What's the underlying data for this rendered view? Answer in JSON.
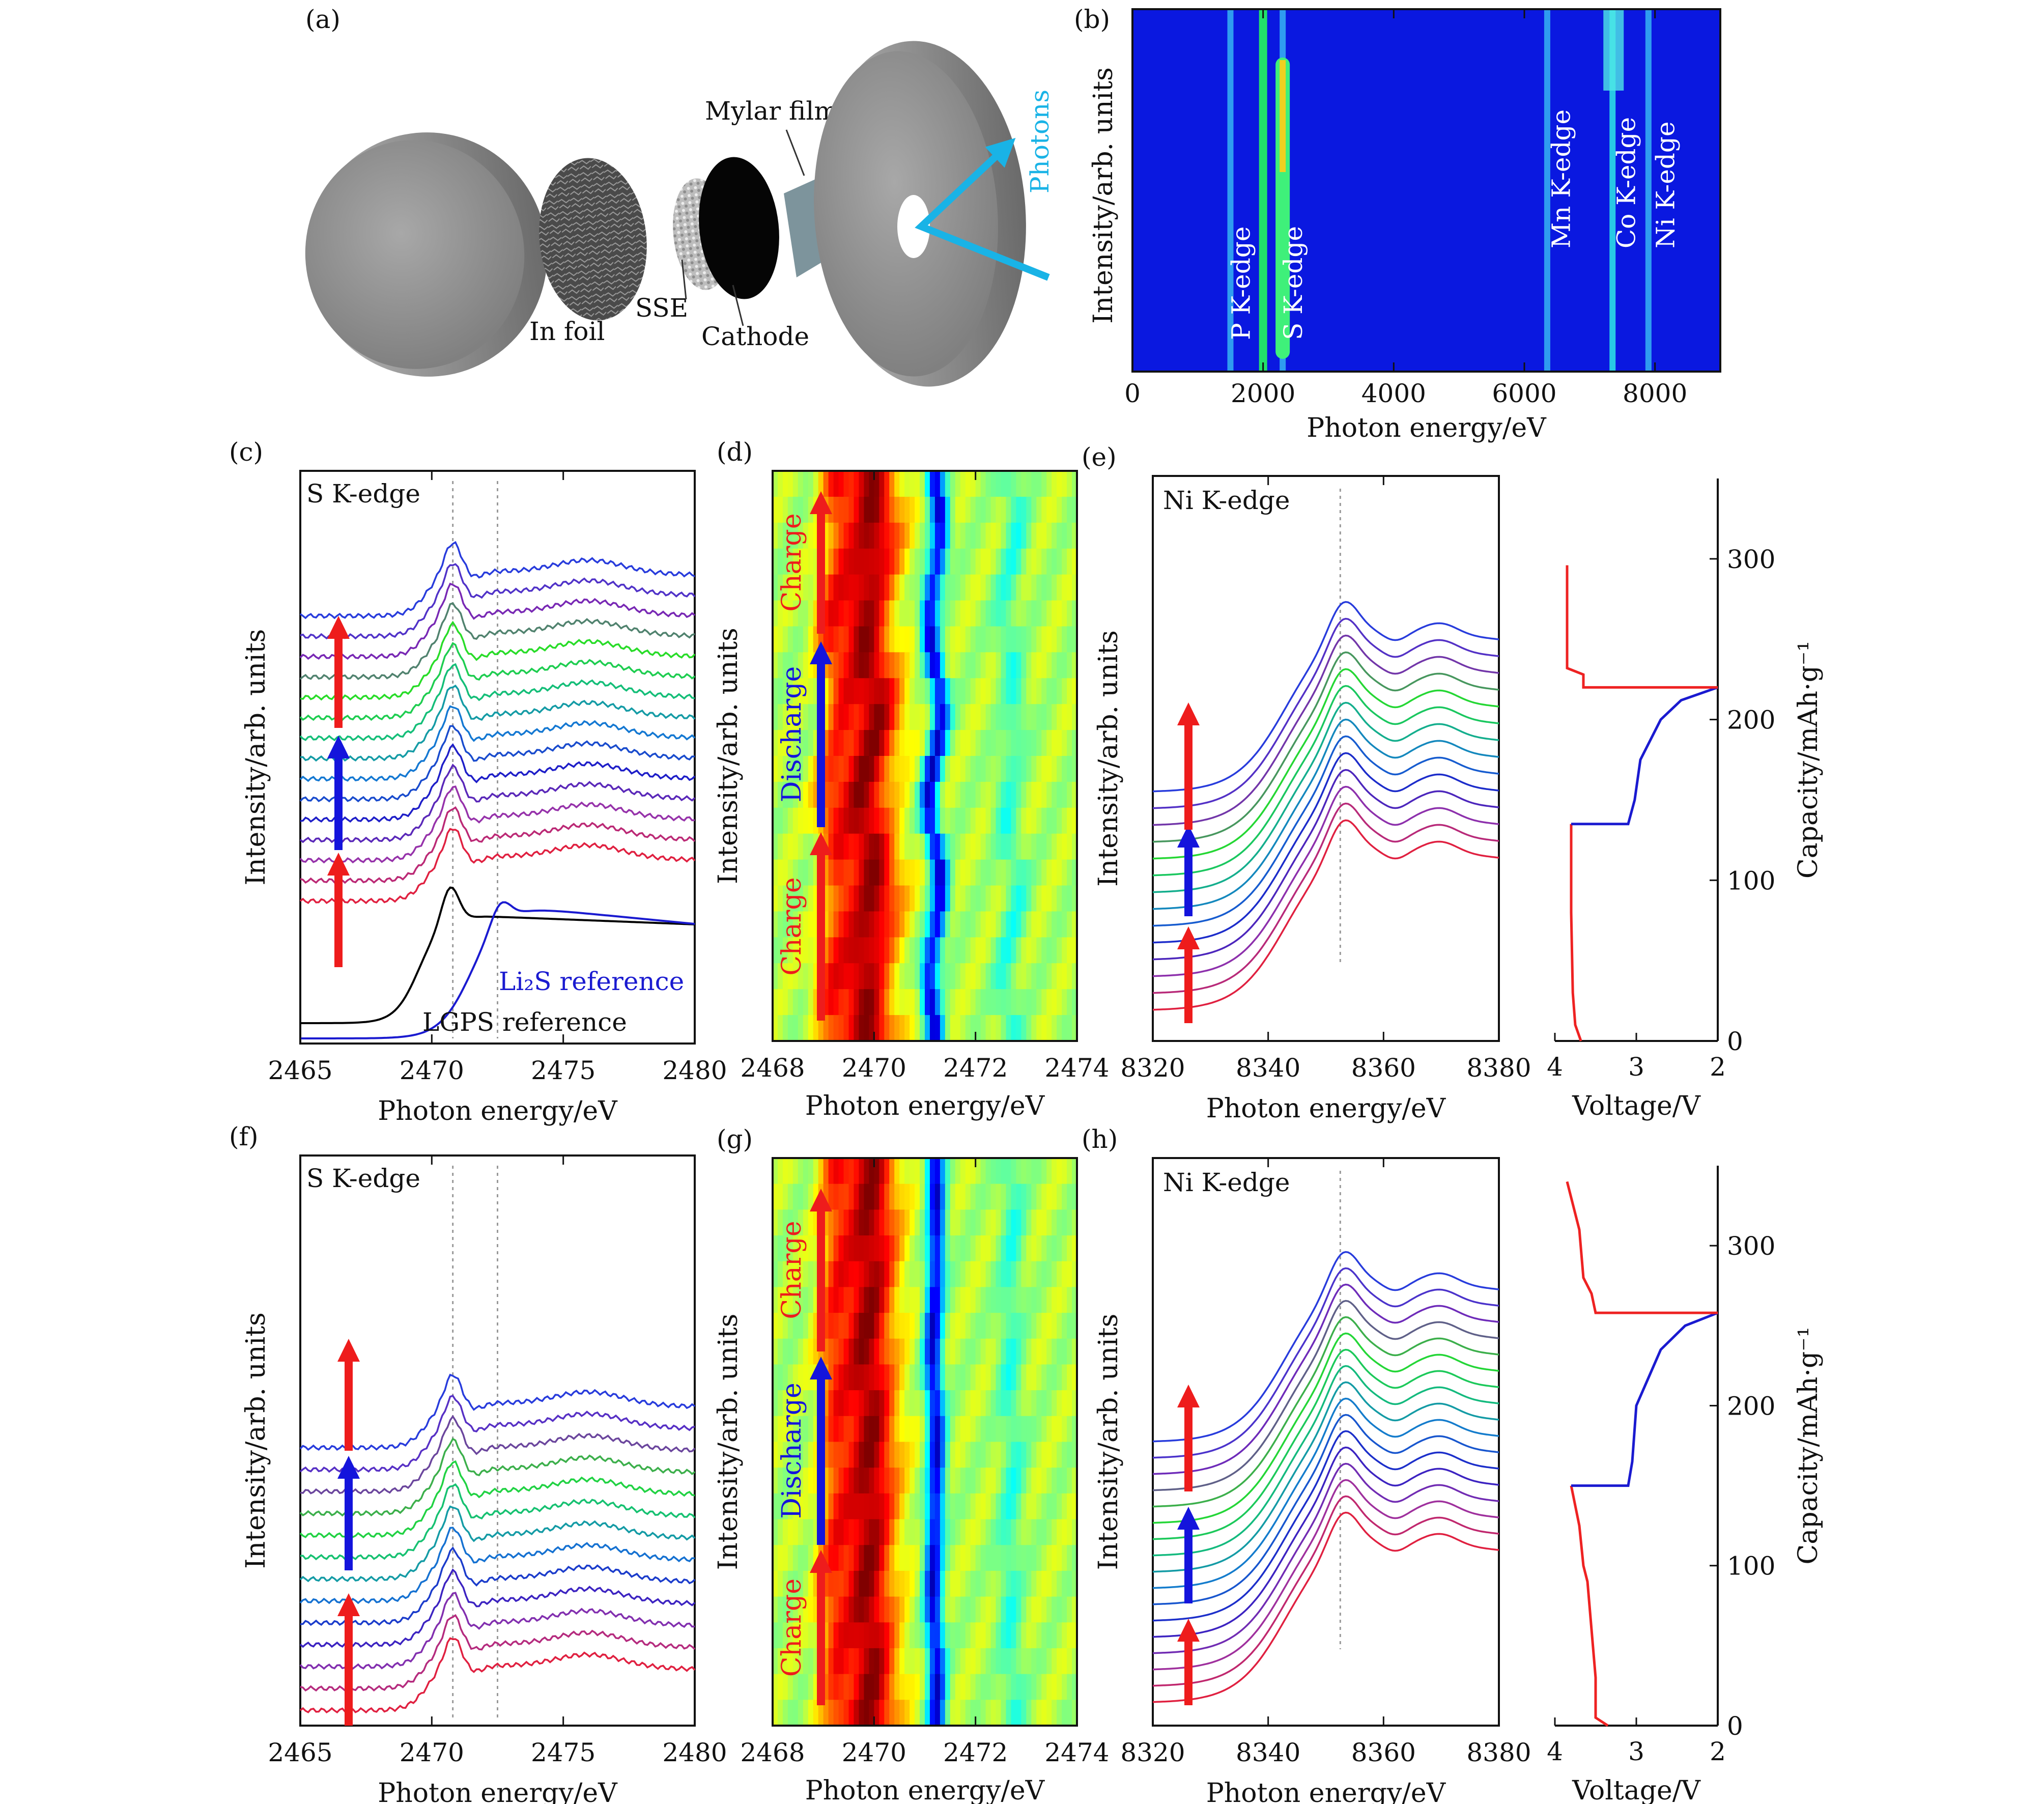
{
  "panel_labels": [
    "(a)",
    "(b)",
    "(c)",
    "(d)",
    "(e)",
    "(f)",
    "(g)",
    "(h)"
  ],
  "schematic": {
    "labels": [
      "In foil",
      "SSE",
      "Cathode",
      "Mylar film",
      "Photons"
    ],
    "colors": {
      "disk": "#9a9a9a",
      "cathode": "#050505",
      "mylar": "#7d949c",
      "photons": "#19b3e6"
    }
  },
  "chart_data": [
    {
      "panel": "(b)",
      "type": "heatmap",
      "xlabel": "Photon energy/eV",
      "ylabel": "Intensity/arb. units",
      "xlim": [
        0,
        9000
      ],
      "xticks": [
        0,
        2000,
        4000,
        6000,
        8000
      ],
      "annotations": [
        "P K-edge",
        "S K-edge",
        "Mn K-edge",
        "Co K-edge",
        "Ni K-edge"
      ],
      "edges": [
        {
          "name": "P K-edge",
          "x": 1500
        },
        {
          "name": "S K-edge",
          "x": 2300
        },
        {
          "name": "Mn K-edge",
          "x": 6400
        },
        {
          "name": "Co K-edge",
          "x": 7400
        },
        {
          "name": "Ni K-edge",
          "x": 8000
        }
      ],
      "bright_lines": [
        1500,
        2000,
        2300,
        6350,
        7350,
        7900
      ]
    },
    {
      "panel": "(c)",
      "type": "line",
      "title": "S K-edge",
      "xlabel": "Photon energy/eV",
      "ylabel": "Intensity/arb. units",
      "xlim": [
        2465,
        2480
      ],
      "xticks": [
        2465,
        2470,
        2475,
        2480
      ],
      "annotations": [
        "Li₂S reference",
        "LGPS reference"
      ],
      "dotted_lines_x": [
        2470.8,
        2472.5
      ],
      "n_spectra": 15,
      "arrows": [
        {
          "color": "#ee1c1c",
          "label": "Charge"
        },
        {
          "color": "#1414dc",
          "label": "Discharge"
        },
        {
          "color": "#ee1c1c",
          "label": "Charge"
        }
      ]
    },
    {
      "panel": "(d)",
      "type": "heatmap",
      "xlabel": "Photon energy/eV",
      "ylabel": "Intensity/arb. units",
      "xlim": [
        2468,
        2474
      ],
      "xticks": [
        2468,
        2470,
        2472,
        2474
      ],
      "annotations": [
        "Charge",
        "Discharge",
        "Charge"
      ]
    },
    {
      "panel": "(e)",
      "type": "line",
      "title": "Ni K-edge",
      "xlabel": "Photon energy/eV",
      "ylabel": "Intensity/arb. units",
      "xlim": [
        8320,
        8380
      ],
      "xticks": [
        8320,
        8340,
        8360,
        8380
      ],
      "dotted_lines_x": [
        8352.5
      ],
      "n_spectra": 14
    },
    {
      "panel": "(e-right)",
      "type": "line",
      "xlabel": "Voltage/V",
      "ylabel": "Capacity/mAh·g⁻¹",
      "xlim": [
        4,
        2
      ],
      "ylim": [
        0,
        350
      ],
      "xticks": [
        4,
        3,
        2
      ],
      "yticks": [
        0,
        100,
        200,
        300
      ],
      "series": [
        {
          "color": "#ee2222",
          "points": [
            [
              3.68,
              0
            ],
            [
              3.75,
              10
            ],
            [
              3.78,
              30
            ],
            [
              3.8,
              80
            ],
            [
              3.8,
              135
            ]
          ]
        },
        {
          "color": "#1a1ad0",
          "points": [
            [
              3.8,
              135
            ],
            [
              3.1,
              135
            ],
            [
              3.02,
              150
            ],
            [
              2.95,
              175
            ],
            [
              2.7,
              200
            ],
            [
              2.45,
              212
            ],
            [
              2.0,
              220
            ]
          ]
        },
        {
          "color": "#ee2222",
          "points": [
            [
              2.0,
              220
            ],
            [
              3.65,
              220
            ],
            [
              3.65,
              228
            ],
            [
              3.85,
              232
            ],
            [
              3.85,
              296
            ]
          ]
        }
      ]
    },
    {
      "panel": "(f)",
      "type": "line",
      "title": "S K-edge",
      "xlabel": "Photon energy/eV",
      "ylabel": "Intensity/arb. units",
      "xlim": [
        2465,
        2480
      ],
      "xticks": [
        2465,
        2470,
        2475,
        2480
      ],
      "dotted_lines_x": [
        2470.8,
        2472.5
      ],
      "n_spectra": 13
    },
    {
      "panel": "(g)",
      "type": "heatmap",
      "xlabel": "Photon energy/eV",
      "ylabel": "Intensity/arb. units",
      "xlim": [
        2468,
        2474
      ],
      "xticks": [
        2468,
        2470,
        2472,
        2474
      ],
      "annotations": [
        "Charge",
        "Discharge",
        "Charge"
      ]
    },
    {
      "panel": "(h)",
      "type": "line",
      "title": "Ni K-edge",
      "xlabel": "Photon energy/eV",
      "ylabel": "Intensity/arb. units",
      "xlim": [
        8320,
        8380
      ],
      "xticks": [
        8320,
        8340,
        8360,
        8380
      ],
      "dotted_lines_x": [
        8352.5
      ],
      "n_spectra": 17
    },
    {
      "panel": "(h-right)",
      "type": "line",
      "xlabel": "Voltage/V",
      "ylabel": "Capacity/mAh·g⁻¹",
      "xlim": [
        4,
        2
      ],
      "ylim": [
        0,
        350
      ],
      "xticks": [
        4,
        3,
        2
      ],
      "yticks": [
        0,
        100,
        200,
        300
      ],
      "series": [
        {
          "color": "#ee2222",
          "points": [
            [
              3.35,
              0
            ],
            [
              3.5,
              5
            ],
            [
              3.5,
              30
            ],
            [
              3.55,
              60
            ],
            [
              3.6,
              90
            ],
            [
              3.65,
              100
            ],
            [
              3.7,
              125
            ],
            [
              3.8,
              150
            ]
          ]
        },
        {
          "color": "#1a1ad0",
          "points": [
            [
              3.8,
              150
            ],
            [
              3.1,
              150
            ],
            [
              3.05,
              165
            ],
            [
              3.0,
              200
            ],
            [
              2.7,
              235
            ],
            [
              2.4,
              250
            ],
            [
              2.0,
              258
            ]
          ]
        },
        {
          "color": "#ee2222",
          "points": [
            [
              2.0,
              258
            ],
            [
              3.5,
              258
            ],
            [
              3.55,
              270
            ],
            [
              3.65,
              280
            ],
            [
              3.7,
              310
            ],
            [
              3.85,
              340
            ]
          ]
        }
      ]
    }
  ]
}
